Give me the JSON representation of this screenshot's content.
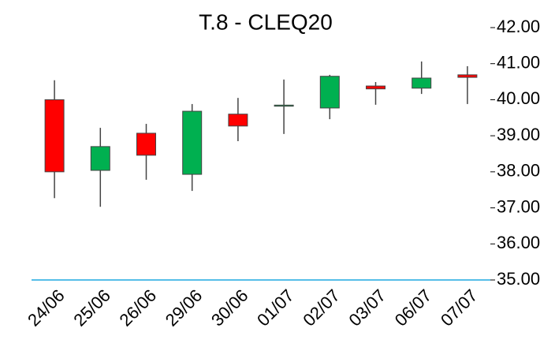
{
  "chart_data": {
    "type": "candlestick",
    "title": "T.8 - CLEQ20",
    "categories": [
      "24/06",
      "25/06",
      "26/06",
      "29/06",
      "30/06",
      "01/07",
      "02/07",
      "03/07",
      "06/07",
      "07/07"
    ],
    "open": [
      40.0,
      38.04,
      39.07,
      37.93,
      39.6,
      39.82,
      39.77,
      40.38,
      40.32,
      40.69
    ],
    "high": [
      40.54,
      39.22,
      39.33,
      39.88,
      40.05,
      40.56,
      40.69,
      40.49,
      41.06,
      40.93
    ],
    "low": [
      37.27,
      37.03,
      37.78,
      37.47,
      38.85,
      39.05,
      39.46,
      39.86,
      40.16,
      39.88
    ],
    "close": [
      38.0,
      38.7,
      38.46,
      39.68,
      39.27,
      39.85,
      40.65,
      40.3,
      40.6,
      40.62
    ],
    "up_color": "#00b050",
    "down_color": "#ff0000",
    "axis_color": "#1fa8e0",
    "ylim": [
      35,
      42
    ],
    "yticks": [
      {
        "value": 35,
        "label": "35.00"
      },
      {
        "value": 36,
        "label": "36.00"
      },
      {
        "value": 37,
        "label": "37.00"
      },
      {
        "value": 38,
        "label": "38.00"
      },
      {
        "value": 39,
        "label": "39.00"
      },
      {
        "value": 40,
        "label": "40.00"
      },
      {
        "value": 41,
        "label": "41.00"
      },
      {
        "value": 42,
        "label": "42.00"
      }
    ]
  }
}
